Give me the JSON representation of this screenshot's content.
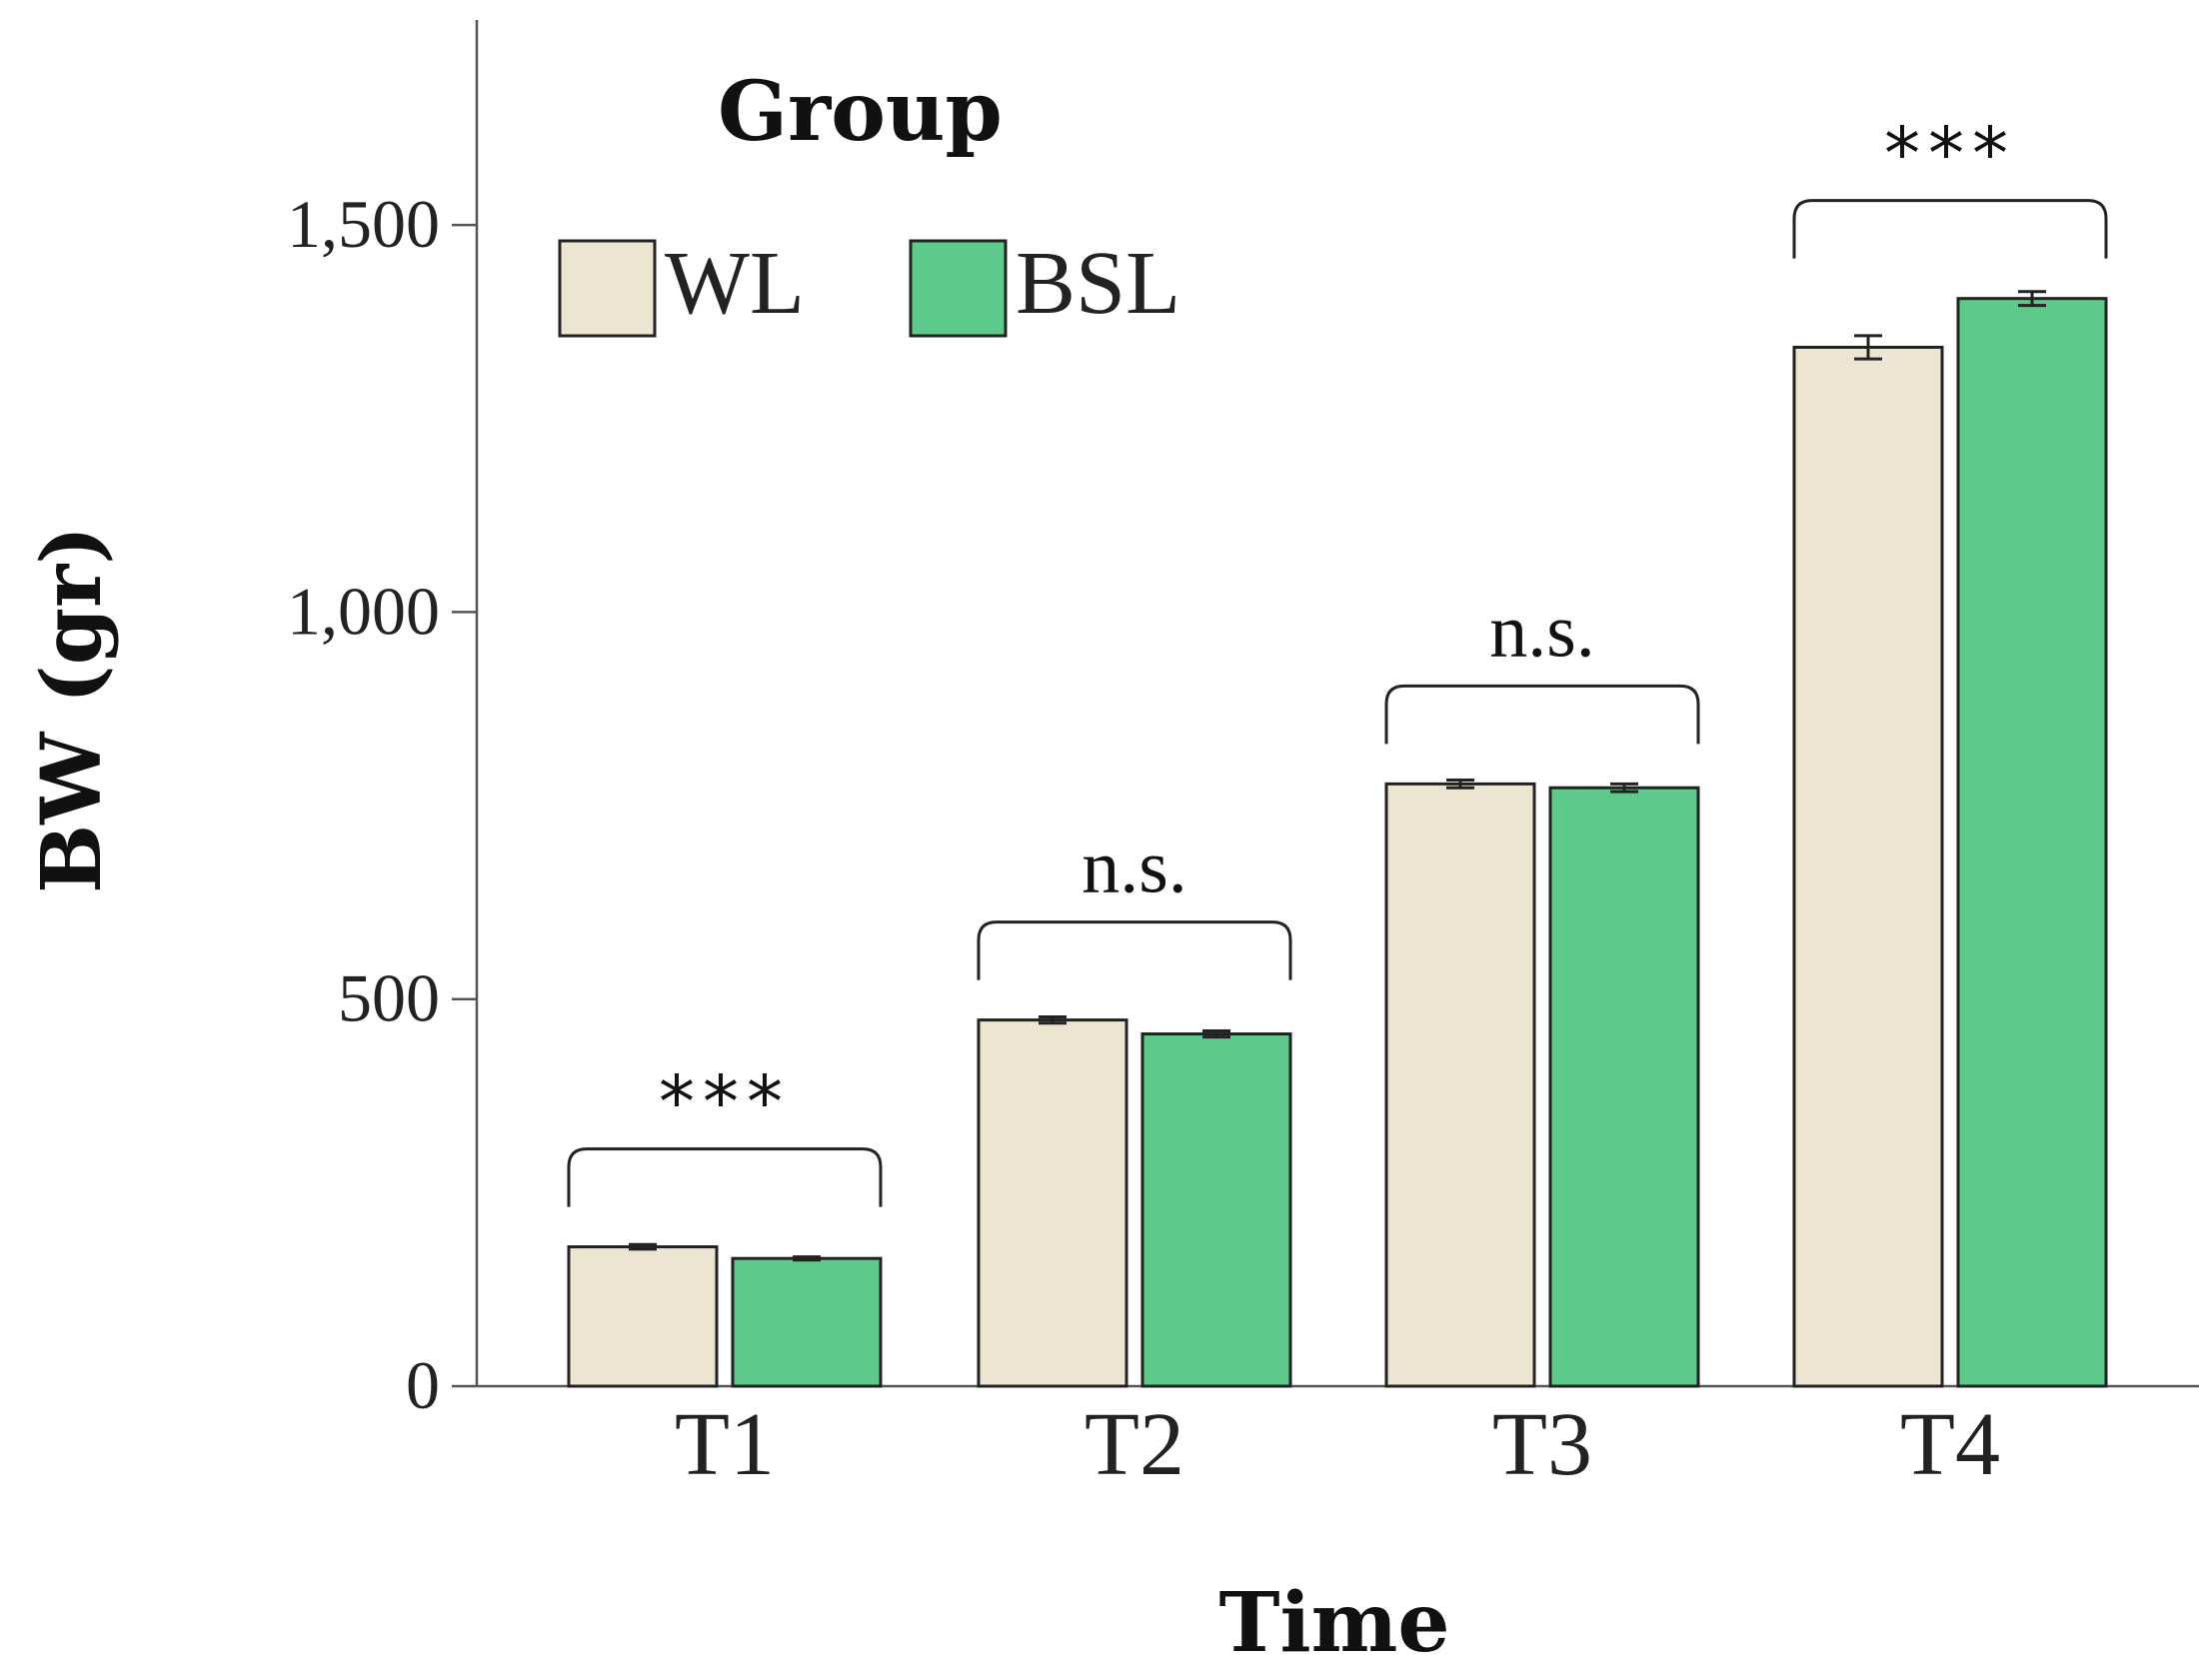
{
  "chart_data": {
    "type": "bar",
    "title": "",
    "xlabel": "Time",
    "ylabel": "BW (gr)",
    "ylim": [
      0,
      1770
    ],
    "yticks": [
      0,
      500,
      1000,
      1500
    ],
    "ytick_labels": [
      "0",
      "500",
      "1,000",
      "1,500"
    ],
    "categories": [
      "T1",
      "T2",
      "T3",
      "T4"
    ],
    "legend": {
      "title": "Group",
      "position": "top-left"
    },
    "series": [
      {
        "name": "WL",
        "color": "#ede5d1",
        "values": [
          180,
          473,
          778,
          1342
        ],
        "errors": [
          3,
          4,
          5,
          15
        ]
      },
      {
        "name": "BSL",
        "color": "#5dc98a",
        "values": [
          165,
          455,
          773,
          1405
        ],
        "errors": [
          2,
          4,
          5,
          9
        ]
      }
    ],
    "significance": [
      "***",
      "n.s.",
      "n.s.",
      "***"
    ]
  }
}
